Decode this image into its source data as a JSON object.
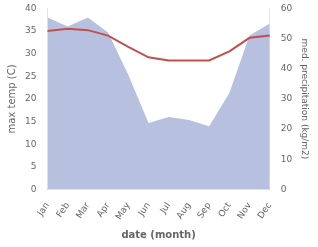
{
  "chart_data": {
    "type": "line",
    "categories": [
      "Jan",
      "Feb",
      "Mar",
      "Apr",
      "May",
      "Jun",
      "Jul",
      "Aug",
      "Sep",
      "Oct",
      "Nov",
      "Dec"
    ],
    "series": [
      {
        "type": "area",
        "color": "#b8c0e0",
        "axis": "y2",
        "values": [
          57,
          54,
          57,
          52,
          38,
          22,
          24,
          23,
          21,
          32,
          51,
          55
        ]
      },
      {
        "type": "line",
        "color": "#c0504d",
        "values": [
          35.0,
          35.5,
          35.2,
          34.0,
          31.5,
          29.2,
          28.5,
          28.5,
          28.5,
          30.5,
          33.5,
          34.0
        ]
      }
    ],
    "xlabel": "date (month)",
    "ylabel": "max temp (C)",
    "y2label": "med. precipitation (kg/m2)",
    "ylim": [
      0,
      40
    ],
    "yticks": [
      0,
      5,
      10,
      15,
      20,
      25,
      30,
      35,
      40
    ],
    "y2lim": [
      0,
      60
    ],
    "y2ticks": [
      0,
      10,
      20,
      30,
      40,
      50,
      60
    ],
    "grid": false
  }
}
